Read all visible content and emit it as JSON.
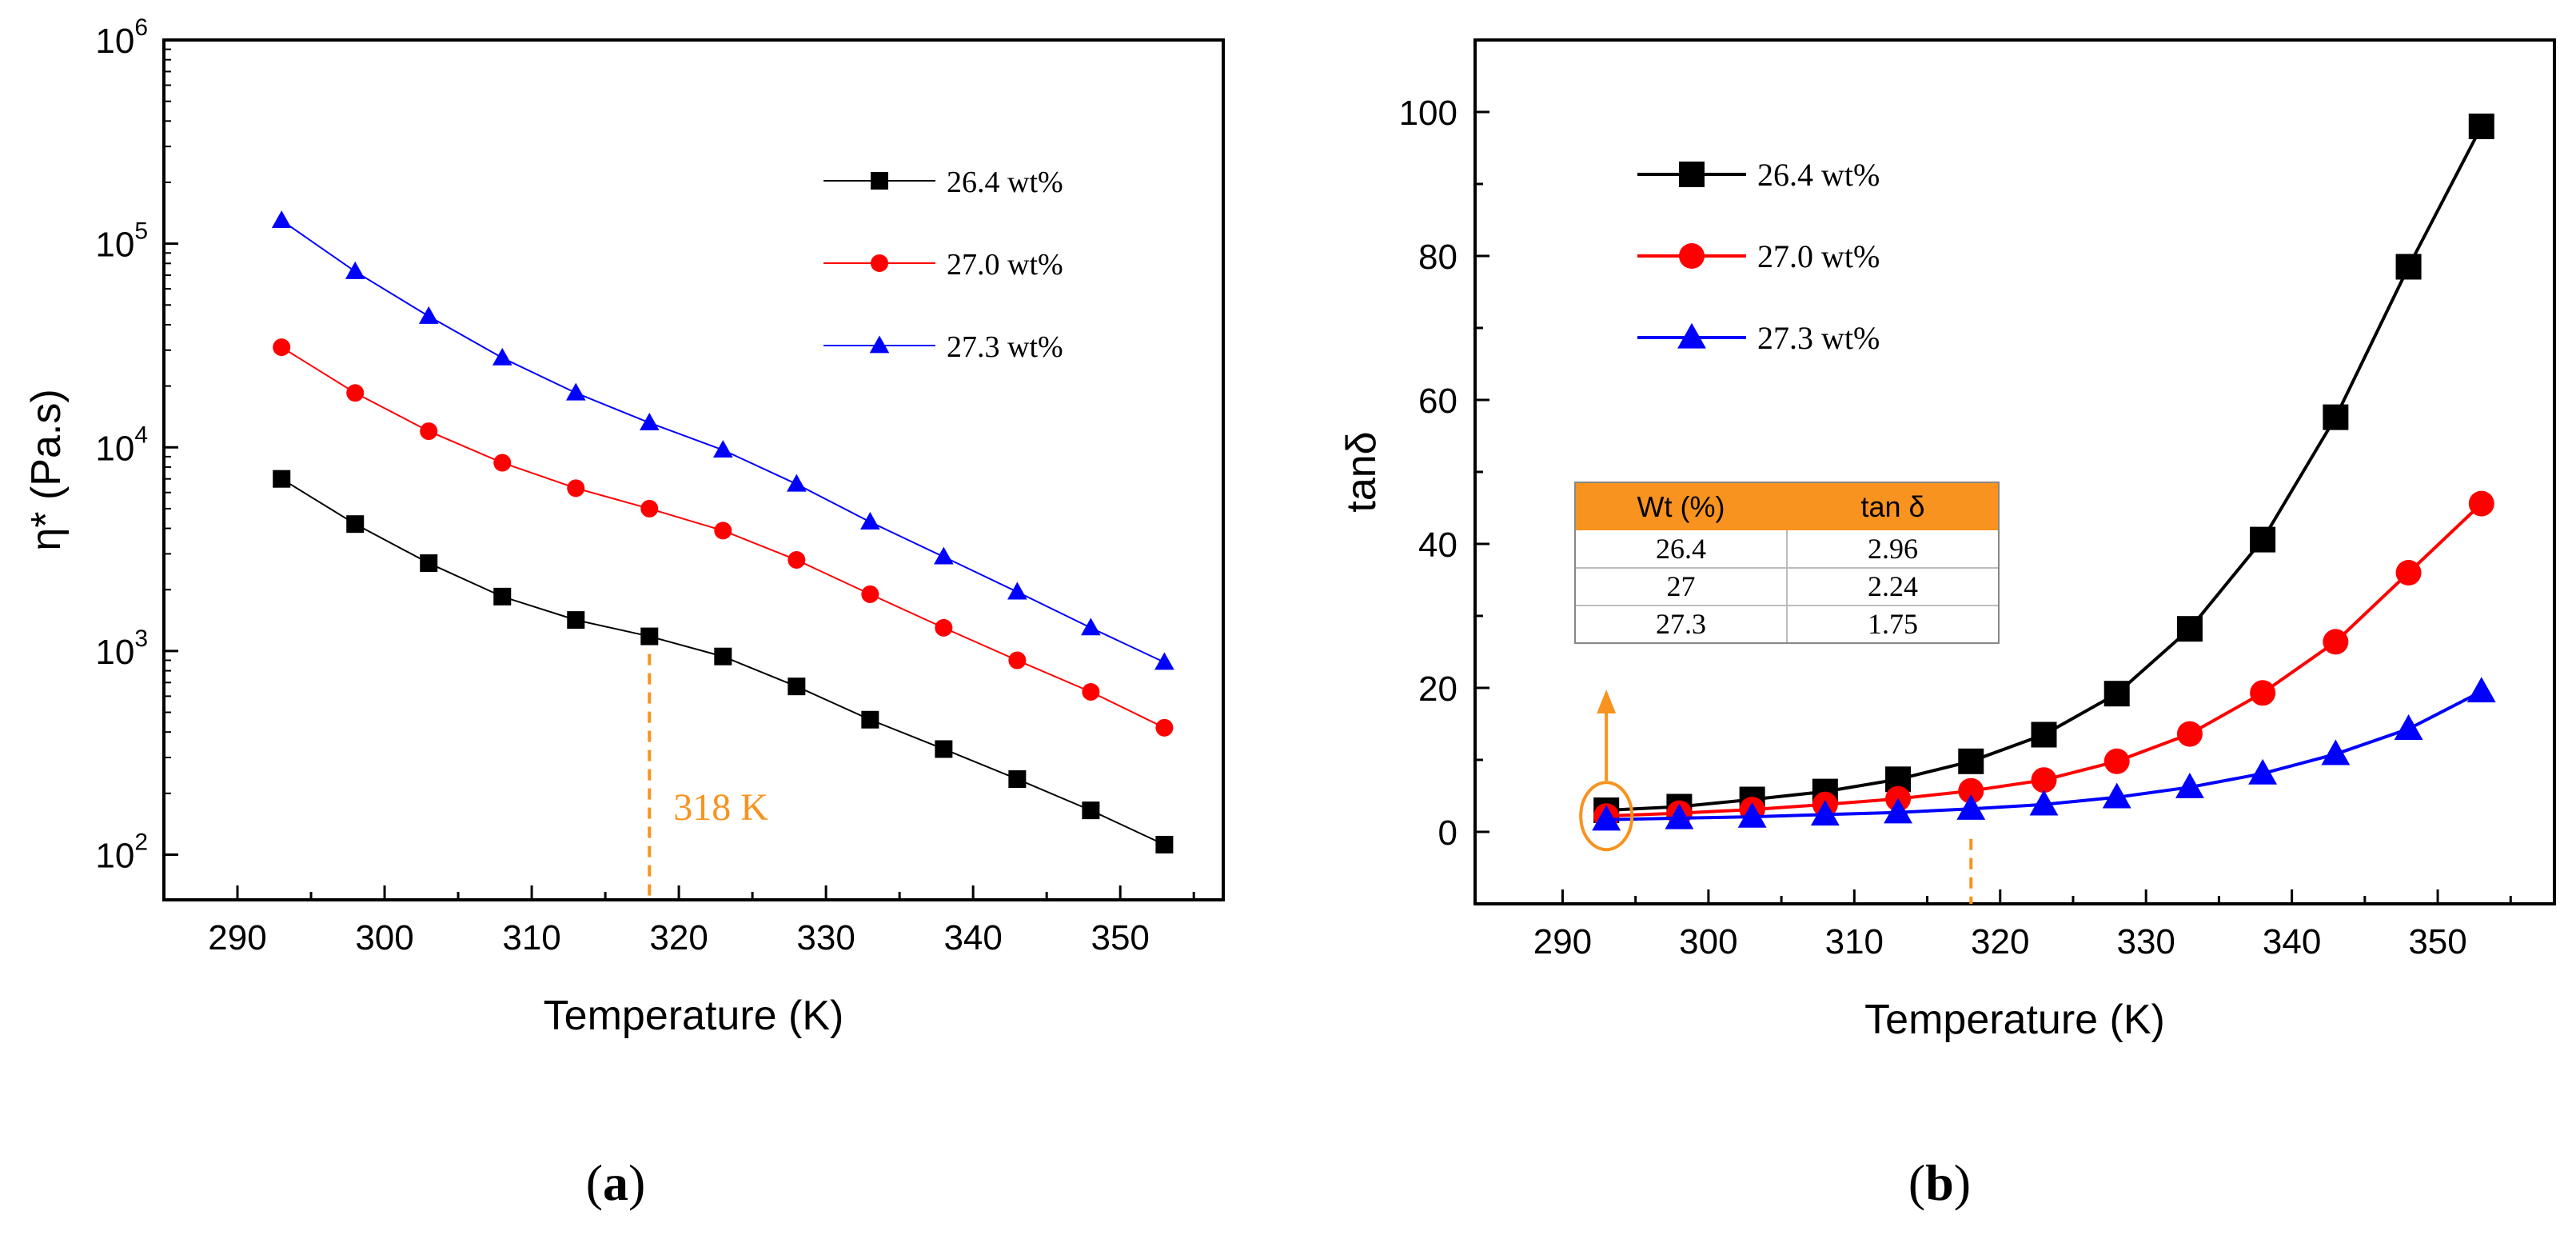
{
  "chart_data": [
    {
      "type": "line",
      "panel_label": "(a)",
      "panel_label_open": "(",
      "panel_label_letter": "a",
      "panel_label_close": ")",
      "xlabel": "Temperature (K)",
      "ylabel": "η* (Pa.s)",
      "yscale": "log",
      "xlim": [
        285,
        357
      ],
      "ylim": [
        60,
        1000000
      ],
      "xticks": [
        290,
        300,
        310,
        320,
        330,
        340,
        350
      ],
      "yticks": [
        {
          "value": 100,
          "base": "10",
          "exp": "2"
        },
        {
          "value": 1000,
          "base": "10",
          "exp": "3"
        },
        {
          "value": 10000,
          "base": "10",
          "exp": "4"
        },
        {
          "value": 100000,
          "base": "10",
          "exp": "5"
        },
        {
          "value": 1000000,
          "base": "10",
          "exp": "6"
        }
      ],
      "x": [
        293,
        298,
        303,
        308,
        313,
        318,
        323,
        328,
        333,
        338,
        343,
        348,
        353
      ],
      "series": [
        {
          "name": "26.4 wt%",
          "color": "#000000",
          "marker": "square",
          "values": [
            7000,
            4200,
            2700,
            1850,
            1420,
            1180,
            940,
            670,
            460,
            330,
            235,
            165,
            112
          ]
        },
        {
          "name": "27.0 wt%",
          "color": "#ff0000",
          "marker": "circle",
          "values": [
            31000,
            18500,
            12000,
            8400,
            6300,
            5000,
            3900,
            2800,
            1900,
            1300,
            900,
            630,
            420
          ]
        },
        {
          "name": "27.3 wt%",
          "color": "#0000ff",
          "marker": "triangle",
          "values": [
            130000,
            73000,
            44000,
            27500,
            18500,
            13200,
            9700,
            6600,
            4300,
            2900,
            1950,
            1300,
            880
          ]
        }
      ],
      "annotation": {
        "text": "318 K",
        "x": 318,
        "color": "#f7931e"
      },
      "legend_position": "top-right"
    },
    {
      "type": "line",
      "panel_label": "(b)",
      "panel_label_open": "(",
      "panel_label_letter": "b",
      "panel_label_close": ")",
      "xlabel": "Temperature (K)",
      "ylabel": "tanδ",
      "yscale": "linear",
      "xlim": [
        284,
        358
      ],
      "ylim": [
        -10,
        110
      ],
      "xticks": [
        290,
        300,
        310,
        320,
        330,
        340,
        350
      ],
      "yticks": [
        0,
        20,
        40,
        60,
        80,
        100
      ],
      "x": [
        293,
        298,
        303,
        308,
        313,
        318,
        323,
        328,
        333,
        338,
        343,
        348,
        353
      ],
      "series": [
        {
          "name": "26.4 wt%",
          "color": "#000000",
          "marker": "square",
          "values": [
            3.0,
            3.5,
            4.5,
            5.6,
            7.3,
            9.8,
            13.5,
            19.2,
            28.2,
            40.6,
            57.6,
            78.5,
            98.0
          ]
        },
        {
          "name": "27.0 wt%",
          "color": "#ff0000",
          "marker": "circle",
          "values": [
            2.2,
            2.6,
            3.1,
            3.8,
            4.6,
            5.7,
            7.2,
            9.8,
            13.6,
            19.3,
            26.4,
            36.0,
            45.6
          ]
        },
        {
          "name": "27.3 wt%",
          "color": "#0000ff",
          "marker": "triangle",
          "values": [
            1.7,
            1.9,
            2.1,
            2.4,
            2.7,
            3.2,
            3.8,
            4.8,
            6.2,
            8.1,
            10.8,
            14.3,
            19.5
          ]
        }
      ],
      "annotation": {
        "x": 318,
        "highlight_x": 293,
        "color": "#f7931e"
      },
      "inset_table": {
        "headers": [
          "Wt (%)",
          "tan δ"
        ],
        "rows": [
          [
            "26.4",
            "2.96"
          ],
          [
            "27",
            "2.24"
          ],
          [
            "27.3",
            "1.75"
          ]
        ],
        "header_color": "#f7931e"
      },
      "legend_position": "top-left"
    }
  ]
}
